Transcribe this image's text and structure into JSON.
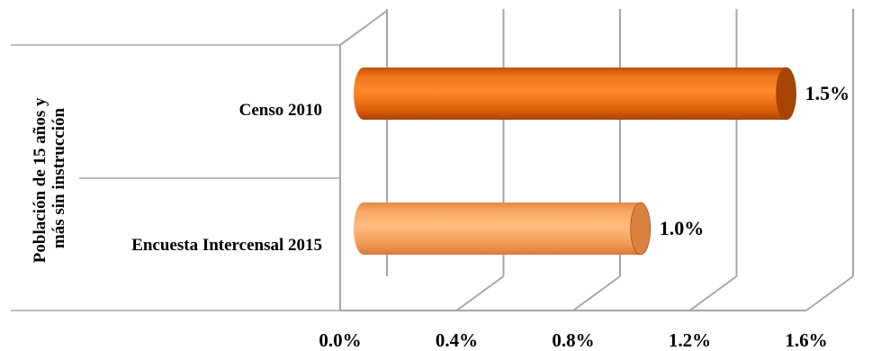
{
  "chart_data": {
    "type": "bar",
    "orientation": "horizontal",
    "style": "3d-cylinder",
    "group_label": "Población de 15 años y más sin instrucción",
    "group_label_lines": [
      "Población de 15 años y",
      "más sin instrucción"
    ],
    "categories": [
      "Censo 2010",
      "Encuesta Intercensal 2015"
    ],
    "values": [
      1.5,
      1.0
    ],
    "value_labels": [
      "1.5%",
      "1.0%"
    ],
    "xlim": [
      0,
      1.6
    ],
    "x_ticks": [
      0.0,
      0.4,
      0.8,
      1.2,
      1.6
    ],
    "x_tick_labels": [
      "0.0%",
      "0.4%",
      "0.8%",
      "1.2%",
      "1.6%"
    ],
    "grid": true,
    "legend": "none",
    "colors": {
      "bar_dark": "#e8650f",
      "bar_light": "#f5a55f",
      "gridline": "#a6a6a6"
    }
  }
}
